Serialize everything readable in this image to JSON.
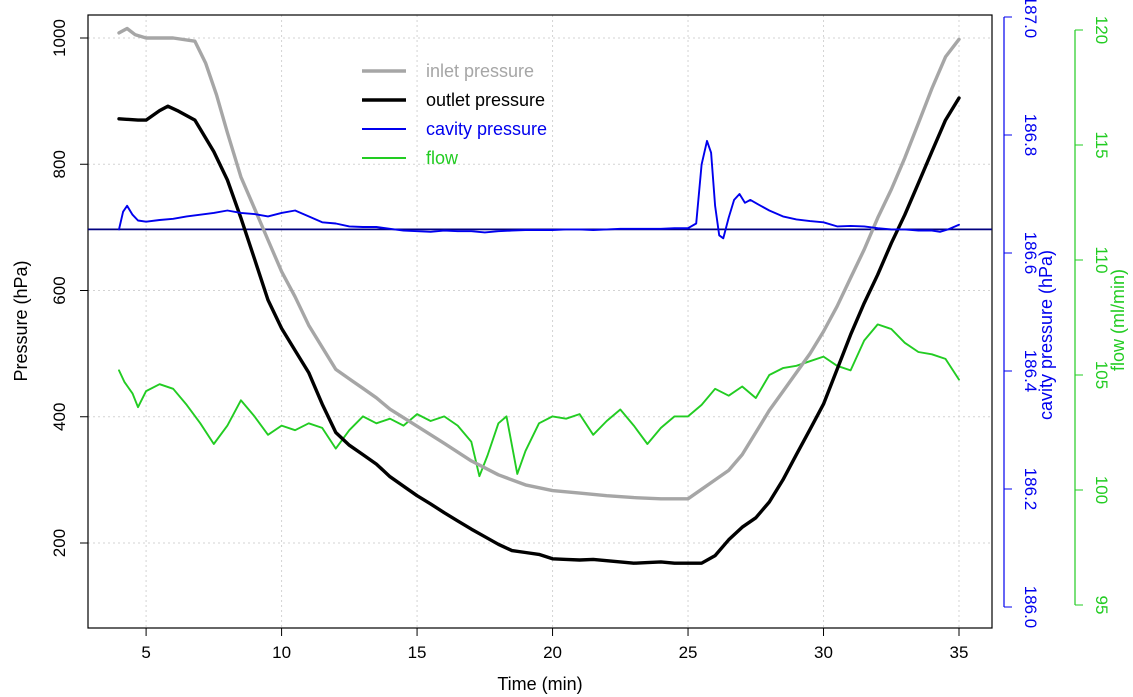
{
  "chart_data": {
    "type": "line",
    "xlabel": "Time (min)",
    "xlim": [
      4,
      35
    ],
    "x_ticks": [
      5,
      10,
      15,
      20,
      25,
      30,
      35
    ],
    "y_axes": {
      "left": {
        "label": "Pressure (hPa)",
        "range": [
          80,
          1040
        ],
        "ticks": [
          200,
          400,
          600,
          800,
          1000
        ],
        "color": "#000000"
      },
      "cavity": {
        "label": "cavity pressure (hPa)",
        "range": [
          185.95,
          187.02
        ],
        "ticks": [
          "186.0",
          "186.2",
          "186.4",
          "186.6",
          "186.8",
          "187.0"
        ],
        "color": "#0000ee"
      },
      "flow": {
        "label": "flow (ml/min)",
        "range": [
          94.5,
          121
        ],
        "ticks": [
          95,
          100,
          105,
          110,
          115,
          120
        ],
        "color": "#22cc22"
      }
    },
    "grid": true,
    "legend_position": "top-center",
    "reference_line": {
      "axis": "cavity",
      "value": 186.64,
      "color": "#000080"
    },
    "series": [
      {
        "name": "inlet pressure",
        "axis": "left",
        "color": "#a6a6a6",
        "x": [
          4,
          4.3,
          4.6,
          5,
          6,
          6.8,
          7.2,
          7.6,
          8,
          8.5,
          9,
          9.5,
          10,
          10.5,
          11,
          11.5,
          12,
          12.5,
          13,
          13.5,
          14,
          15,
          16,
          17,
          18,
          19,
          20,
          21,
          22,
          23,
          24,
          25,
          25.5,
          26,
          26.5,
          27,
          27.5,
          28,
          28.5,
          29,
          29.5,
          30,
          30.5,
          31,
          31.5,
          32,
          32.5,
          33,
          33.5,
          34,
          34.5,
          35
        ],
        "y": [
          1008,
          1015,
          1005,
          1000,
          1000,
          995,
          960,
          910,
          850,
          780,
          730,
          680,
          630,
          590,
          545,
          510,
          475,
          460,
          445,
          430,
          412,
          385,
          358,
          330,
          308,
          292,
          283,
          279,
          275,
          272,
          270,
          270,
          285,
          300,
          315,
          340,
          375,
          410,
          440,
          470,
          500,
          535,
          575,
          620,
          665,
          715,
          760,
          810,
          865,
          920,
          970,
          998
        ]
      },
      {
        "name": "outlet pressure",
        "axis": "left",
        "color": "#000000",
        "x": [
          4,
          4.7,
          5,
          5.5,
          5.8,
          6.2,
          6.8,
          7.5,
          8,
          8.5,
          9,
          9.5,
          10,
          10.5,
          11,
          11.5,
          12,
          12.5,
          13,
          13.5,
          14,
          14.5,
          15,
          15.5,
          16,
          16.5,
          17,
          17.5,
          18,
          18.5,
          19,
          19.5,
          20,
          20.5,
          21,
          21.5,
          22,
          22.5,
          23,
          23.5,
          24,
          24.5,
          25,
          25.5,
          26,
          26.5,
          27,
          27.5,
          28,
          28.5,
          29,
          29.5,
          30,
          30.5,
          31,
          31.5,
          32,
          32.5,
          33,
          33.5,
          34,
          34.5,
          35
        ],
        "y": [
          872,
          870,
          870,
          885,
          892,
          884,
          870,
          820,
          775,
          715,
          650,
          585,
          540,
          505,
          470,
          420,
          375,
          355,
          340,
          325,
          305,
          290,
          275,
          262,
          248,
          235,
          222,
          210,
          198,
          188,
          185,
          182,
          175,
          174,
          173,
          174,
          172,
          170,
          168,
          169,
          170,
          168,
          168,
          168,
          180,
          205,
          225,
          240,
          265,
          300,
          340,
          380,
          420,
          475,
          530,
          580,
          625,
          675,
          720,
          770,
          820,
          870,
          905
        ]
      },
      {
        "name": "cavity pressure",
        "axis": "cavity",
        "color": "#0000ee",
        "x": [
          4,
          4.15,
          4.3,
          4.5,
          4.7,
          5,
          5.5,
          6,
          6.5,
          7,
          7.5,
          8,
          8.5,
          9,
          9.5,
          10,
          10.5,
          11,
          11.5,
          12,
          12.5,
          13,
          13.5,
          14,
          14.5,
          15,
          15.5,
          16,
          16.5,
          17,
          17.5,
          18,
          18.5,
          19,
          19.5,
          20,
          20.5,
          21,
          21.5,
          22,
          22.5,
          23,
          23.5,
          24,
          24.5,
          25,
          25.3,
          25.5,
          25.7,
          25.85,
          26,
          26.15,
          26.3,
          26.5,
          26.7,
          26.9,
          27.1,
          27.3,
          27.6,
          28,
          28.5,
          29,
          29.5,
          30,
          30.5,
          31,
          31.5,
          32,
          32.5,
          33,
          33.5,
          34,
          34.3,
          34.6,
          35
        ],
        "y": [
          186.64,
          186.67,
          186.68,
          186.665,
          186.655,
          186.653,
          186.656,
          186.658,
          186.662,
          186.665,
          186.668,
          186.672,
          186.668,
          186.666,
          186.662,
          186.668,
          186.672,
          186.662,
          186.652,
          186.65,
          186.645,
          186.644,
          186.644,
          186.641,
          186.638,
          186.637,
          186.636,
          186.638,
          186.637,
          186.637,
          186.635,
          186.637,
          186.638,
          186.639,
          186.639,
          186.639,
          186.64,
          186.64,
          186.639,
          186.64,
          186.641,
          186.641,
          186.641,
          186.641,
          186.642,
          186.642,
          186.65,
          186.75,
          186.79,
          186.77,
          186.68,
          186.63,
          186.625,
          186.66,
          186.69,
          186.7,
          186.685,
          186.69,
          186.682,
          186.672,
          186.662,
          186.657,
          186.654,
          186.652,
          186.645,
          186.646,
          186.645,
          186.642,
          186.64,
          186.64,
          186.638,
          186.638,
          186.636,
          186.64,
          186.648
        ]
      },
      {
        "name": "flow",
        "axis": "flow",
        "color": "#22cc22",
        "x": [
          4,
          4.2,
          4.5,
          4.7,
          5,
          5.5,
          6,
          6.5,
          7,
          7.5,
          8,
          8.5,
          9,
          9.5,
          10,
          10.5,
          11,
          11.5,
          12,
          12.5,
          13,
          13.5,
          14,
          14.5,
          15,
          15.5,
          16,
          16.5,
          17,
          17.3,
          17.6,
          18,
          18.3,
          18.7,
          19,
          19.5,
          20,
          20.5,
          21,
          21.5,
          22,
          22.5,
          23,
          23.5,
          24,
          24.5,
          25,
          25.5,
          26,
          26.5,
          27,
          27.5,
          28,
          28.5,
          29,
          29.5,
          30,
          30.5,
          31,
          31.5,
          32,
          32.5,
          33,
          33.5,
          34,
          34.5,
          35
        ],
        "y": [
          105.2,
          104.7,
          104.2,
          103.6,
          104.3,
          104.6,
          104.4,
          103.7,
          102.9,
          102.0,
          102.8,
          103.9,
          103.2,
          102.4,
          102.8,
          102.6,
          102.9,
          102.7,
          101.8,
          102.6,
          103.2,
          102.9,
          103.1,
          102.8,
          103.3,
          103.0,
          103.2,
          102.8,
          102.1,
          100.6,
          101.5,
          102.9,
          103.2,
          100.7,
          101.7,
          102.9,
          103.2,
          103.1,
          103.3,
          102.4,
          103.0,
          103.5,
          102.8,
          102.0,
          102.7,
          103.2,
          103.2,
          103.7,
          104.4,
          104.1,
          104.5,
          104.0,
          105.0,
          105.3,
          105.4,
          105.6,
          105.8,
          105.4,
          105.2,
          106.5,
          107.2,
          107.0,
          106.4,
          106.0,
          105.9,
          105.7,
          104.8
        ]
      }
    ]
  }
}
